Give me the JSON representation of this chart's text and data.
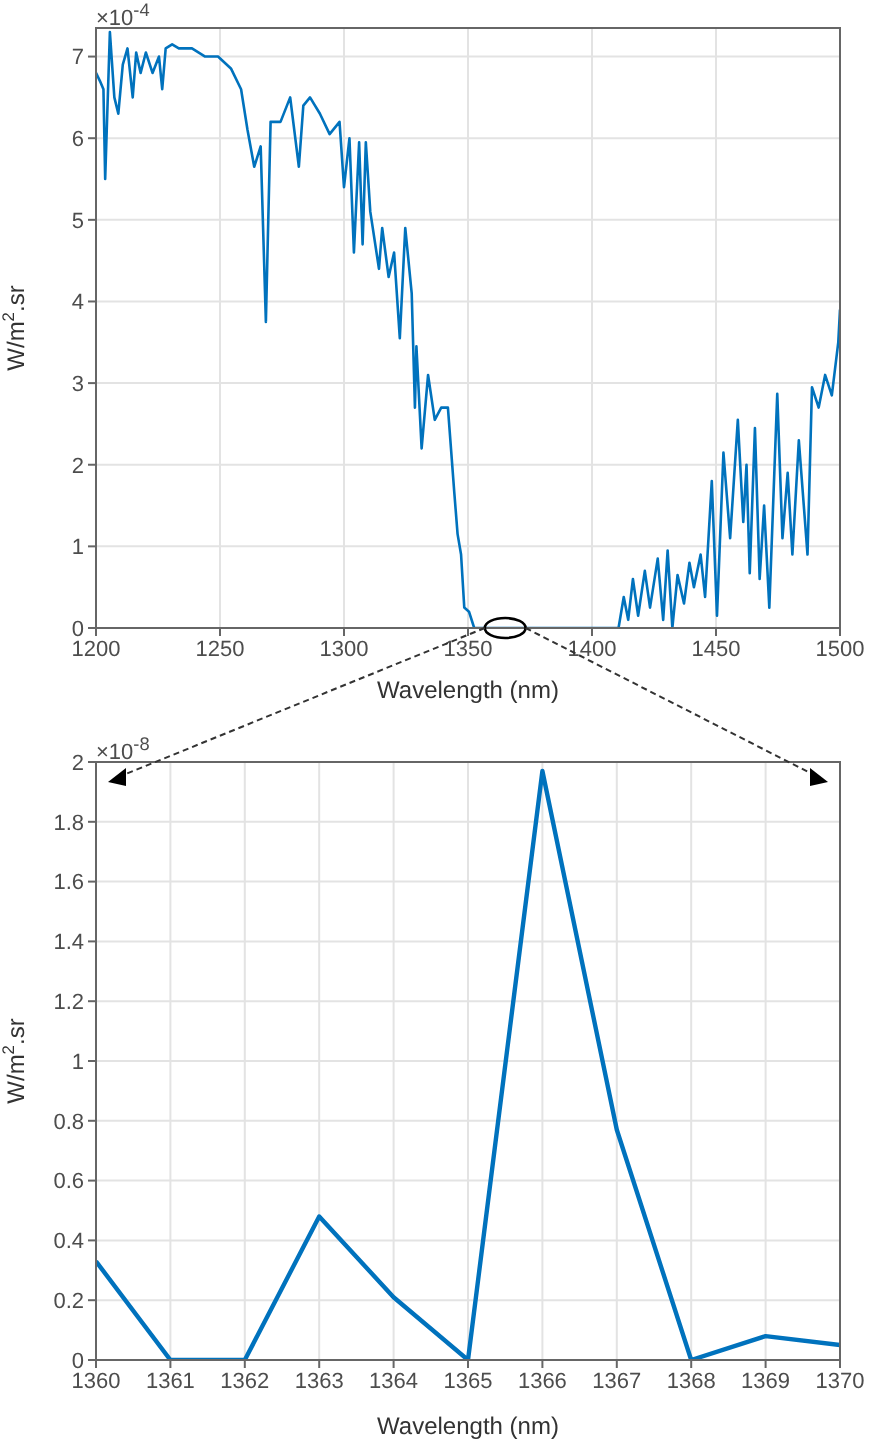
{
  "chart_data": [
    {
      "type": "line",
      "xlabel": "Wavelength (nm)",
      "ylabel": "W/m$^{2}$.sr",
      "annotations": [
        "×10$^{-4}$"
      ],
      "color": "#0072bd",
      "grid": true,
      "xlim": [
        1200,
        1500
      ],
      "xticks": [
        1200,
        1250,
        1300,
        1350,
        1400,
        1450,
        1500
      ],
      "ylim": [
        0,
        7.35
      ],
      "yticks": [
        0,
        1,
        2,
        3,
        4,
        5,
        6,
        7
      ],
      "x": [
        1200,
        1201.6,
        1203,
        1203.7,
        1205.6,
        1207.4,
        1209,
        1210.8,
        1212.7,
        1214.8,
        1216.2,
        1218,
        1220.1,
        1222.8,
        1225.4,
        1226.7,
        1228.1,
        1230.7,
        1233.4,
        1238.7,
        1244,
        1249.2,
        1254.5,
        1258.5,
        1261.1,
        1263.8,
        1266.4,
        1268.5,
        1270.4,
        1274.4,
        1278.3,
        1281.8,
        1283.6,
        1286.3,
        1290.3,
        1294.2,
        1298.2,
        1300,
        1302.2,
        1304,
        1306.1,
        1307.5,
        1308.8,
        1310.6,
        1314.1,
        1315.4,
        1318,
        1320.2,
        1322.5,
        1324.7,
        1327.3,
        1328.6,
        1329.2,
        1331.3,
        1333.9,
        1336.6,
        1339.2,
        1341.9,
        1344.5,
        1345.8,
        1347.2,
        1348.5,
        1350.4,
        1352.5,
        1360,
        1380,
        1400,
        1410.7,
        1412.8,
        1414.6,
        1416.5,
        1418.6,
        1421.3,
        1423.4,
        1426.5,
        1428.7,
        1430.5,
        1432.4,
        1434.5,
        1437.1,
        1439.3,
        1441.1,
        1443.8,
        1445.6,
        1448.3,
        1450.4,
        1453,
        1455.7,
        1458.8,
        1461,
        1462.3,
        1463.6,
        1465.7,
        1467.6,
        1469.4,
        1471.5,
        1474.7,
        1476.8,
        1478.9,
        1480.8,
        1483.4,
        1486.9,
        1488.7,
        1491.4,
        1494,
        1496.7,
        1499.3,
        1500
      ],
      "values": [
        6.8,
        6.7,
        6.6,
        5.5,
        7.3,
        6.5,
        6.3,
        6.9,
        7.1,
        6.5,
        7.05,
        6.8,
        7.05,
        6.8,
        7,
        6.6,
        7.1,
        7.15,
        7.1,
        7.1,
        7,
        7,
        6.85,
        6.6,
        6.1,
        5.65,
        5.9,
        3.75,
        6.2,
        6.2,
        6.5,
        5.65,
        6.4,
        6.5,
        6.3,
        6.05,
        6.2,
        5.4,
        6,
        4.6,
        5.95,
        4.7,
        5.95,
        5.1,
        4.4,
        4.9,
        4.3,
        4.6,
        3.55,
        4.9,
        4.1,
        2.7,
        3.45,
        2.2,
        3.1,
        2.55,
        2.7,
        2.7,
        1.65,
        1.15,
        0.9,
        0.25,
        0.2,
        0,
        0,
        0,
        0,
        0,
        0.38,
        0.1,
        0.6,
        0.15,
        0.7,
        0.25,
        0.85,
        0.1,
        0.95,
        0,
        0.65,
        0.3,
        0.8,
        0.5,
        0.9,
        0.38,
        1.8,
        0.15,
        2.15,
        1.1,
        2.55,
        1.3,
        2,
        0.67,
        2.45,
        0.6,
        1.5,
        0.25,
        2.87,
        1.1,
        1.9,
        0.9,
        2.3,
        0.9,
        2.95,
        2.7,
        3.1,
        2.85,
        3.5,
        3.9
      ]
    },
    {
      "type": "line",
      "xlabel": "Wavelength (nm)",
      "ylabel": "W/m$^{2}$.sr",
      "annotations": [
        "×10$^{-8}$"
      ],
      "color": "#0072bd",
      "grid": true,
      "xlim": [
        1360,
        1370
      ],
      "xticks": [
        1360,
        1361,
        1362,
        1363,
        1364,
        1365,
        1366,
        1367,
        1368,
        1369,
        1370
      ],
      "ylim": [
        0,
        2
      ],
      "yticks": [
        0,
        0.2,
        0.4,
        0.6,
        0.8,
        1,
        1.2,
        1.4,
        1.6,
        1.8,
        2
      ],
      "x": [
        1360,
        1361,
        1362,
        1363,
        1364,
        1365,
        1366,
        1367,
        1368,
        1369,
        1370
      ],
      "values": [
        0.33,
        0,
        0,
        0.48,
        0.21,
        0,
        1.97,
        0.77,
        0,
        0.08,
        0.05
      ]
    }
  ]
}
